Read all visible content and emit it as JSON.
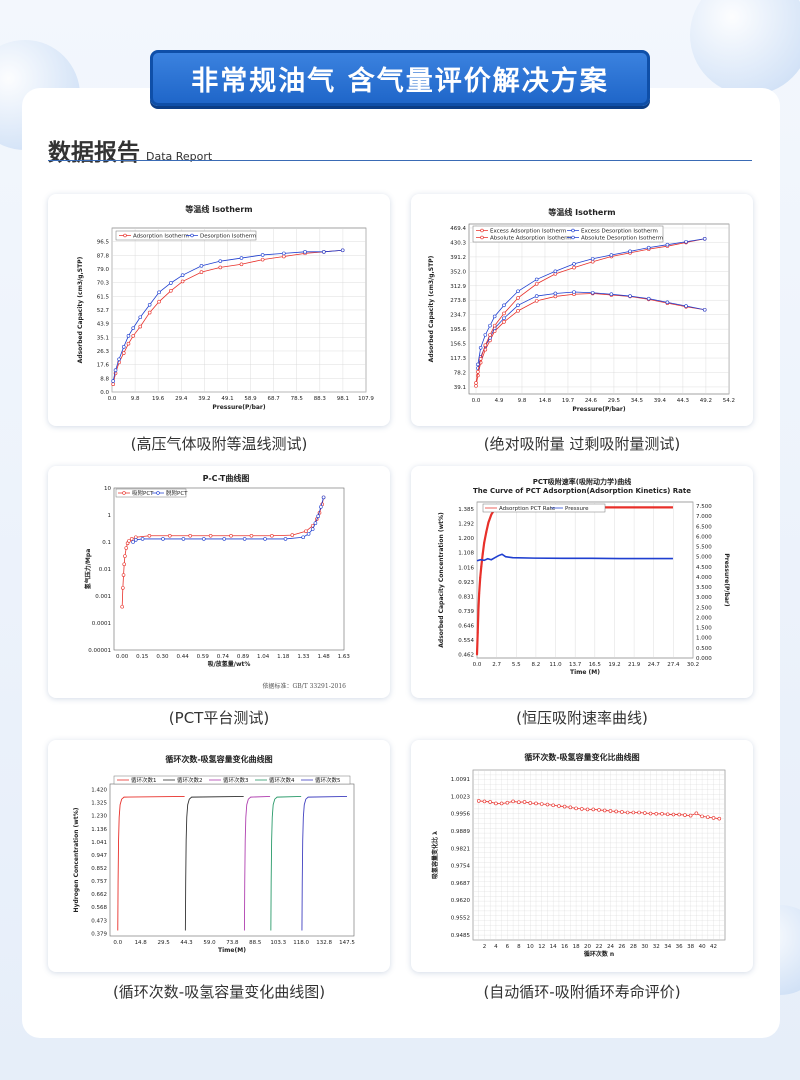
{
  "banner": "非常规油气  含气量评价解决方案",
  "section": {
    "title_cn": "数据报告",
    "title_en": "Data Report"
  },
  "captions": [
    "(高压气体吸附等温线测试)",
    "(绝对吸附量 过剩吸附量测试)",
    "(PCT平台测试)",
    "(恒压吸附速率曲线)",
    "(循环次数-吸氢容量变化曲线图)",
    "(自动循环-吸附循环寿命评价)"
  ],
  "colors": {
    "red": "#e8302a",
    "blue": "#1f3fd0",
    "grid": "#d6d6d6"
  },
  "chart_data": [
    {
      "type": "line",
      "title": "等温线 Isotherm",
      "xlabel": "Pressure(P/bar)",
      "ylabel": "Adsorbed Capacity (cm3/g,STP)",
      "xticks": [
        "0.0",
        "9.8",
        "19.6",
        "29.4",
        "39.2",
        "49.1",
        "58.9",
        "68.7",
        "78.5",
        "88.3",
        "98.1",
        "107.9"
      ],
      "yticks": [
        "0.0",
        "8.8",
        "17.6",
        "26.3",
        "35.1",
        "43.9",
        "52.7",
        "61.5",
        "70.3",
        "79.0",
        "87.8",
        "96.5"
      ],
      "xlim": [
        0,
        107.9
      ],
      "ylim": [
        0,
        105.3
      ],
      "legend": [
        "Adsorption Isotherm",
        "Desorption Isotherm"
      ],
      "series": [
        {
          "name": "Adsorption Isotherm",
          "color": "#e8302a",
          "x": [
            0.5,
            1.5,
            3,
            5,
            7,
            9,
            12,
            16,
            20,
            25,
            30,
            38,
            46,
            55,
            64,
            73,
            82,
            90,
            98
          ],
          "y": [
            5,
            12,
            19,
            25,
            31,
            36,
            42,
            51,
            58,
            65,
            71,
            77,
            80,
            82,
            85,
            87,
            89,
            90,
            91
          ]
        },
        {
          "name": "Desorption Isotherm",
          "color": "#1f3fd0",
          "x": [
            98,
            90,
            82,
            73,
            64,
            55,
            46,
            38,
            30,
            25,
            20,
            16,
            12,
            9,
            7,
            5,
            3,
            1.5,
            0.5
          ],
          "y": [
            91,
            90,
            90,
            89,
            88,
            86,
            84,
            81,
            75,
            70,
            64,
            56,
            48,
            41,
            36,
            29,
            21,
            14,
            7
          ]
        }
      ]
    },
    {
      "type": "line",
      "title": "等温线 Isotherm",
      "xlabel": "Pressure(P/bar)",
      "ylabel": "Adsorbed Capacity (cm3/g,STP)",
      "xticks": [
        "0.0",
        "4.9",
        "9.8",
        "14.8",
        "19.7",
        "24.6",
        "29.5",
        "34.5",
        "39.4",
        "44.3",
        "49.2",
        "54.2"
      ],
      "yticks": [
        "39.1",
        "78.2",
        "117.3",
        "156.5",
        "195.6",
        "234.7",
        "273.8",
        "312.9",
        "352.0",
        "391.2",
        "430.3",
        "469.4"
      ],
      "xlim": [
        -1.5,
        54.2
      ],
      "ylim": [
        39.1,
        469.4
      ],
      "legend": [
        "Excess Adsorption Isotherm",
        "Excess Desorption Isotherm",
        "Absolute Adsorption Isotherm",
        "Absolute Desorption Isotherm"
      ],
      "series": [
        {
          "name": "Excess Adsorption Isotherm",
          "color": "#e8302a",
          "x": [
            0,
            0.4,
            1,
            2,
            3,
            4,
            6,
            9,
            13,
            17,
            21,
            25,
            29,
            33,
            37,
            41,
            45,
            49
          ],
          "y": [
            42,
            70,
            105,
            140,
            165,
            190,
            215,
            245,
            272,
            284,
            290,
            292,
            288,
            284,
            276,
            266,
            256,
            248
          ]
        },
        {
          "name": "Excess Desorption Isotherm",
          "color": "#1f3fd0",
          "x": [
            49,
            45,
            41,
            37,
            33,
            29,
            25,
            21,
            17,
            13,
            9,
            6,
            4,
            3,
            2,
            1,
            0.4
          ],
          "y": [
            248,
            258,
            268,
            278,
            285,
            290,
            294,
            296,
            292,
            285,
            260,
            225,
            198,
            172,
            150,
            120,
            90
          ]
        },
        {
          "name": "Absolute Adsorption Isotherm",
          "color": "#e8302a",
          "x": [
            0,
            0.4,
            1,
            2,
            3,
            4,
            6,
            9,
            13,
            17,
            21,
            25,
            29,
            33,
            37,
            41,
            45,
            49
          ],
          "y": [
            50,
            80,
            115,
            152,
            180,
            205,
            238,
            280,
            318,
            345,
            362,
            378,
            392,
            402,
            412,
            420,
            430,
            440
          ]
        },
        {
          "name": "Absolute Desorption Isotherm",
          "color": "#1f3fd0",
          "x": [
            49,
            45,
            41,
            37,
            33,
            29,
            25,
            21,
            17,
            13,
            9,
            6,
            4,
            3,
            2,
            1,
            0.4
          ],
          "y": [
            440,
            432,
            424,
            416,
            406,
            396,
            386,
            372,
            352,
            330,
            298,
            260,
            230,
            205,
            180,
            145,
            100
          ]
        }
      ]
    },
    {
      "type": "line",
      "title": "P-C-T曲线图",
      "xlabel": "吸/放氢量/wt%",
      "ylabel": "氢气压力/Mpa",
      "xticks": [
        "0.00",
        "0.15",
        "0.30",
        "0.44",
        "0.59",
        "0.74",
        "0.89",
        "1.04",
        "1.18",
        "1.33",
        "1.48",
        "1.63"
      ],
      "yticks": [
        "10",
        "1",
        "0.1",
        "0.01",
        "0.001",
        "0.0001",
        "0.00001"
      ],
      "log_y": true,
      "xlim": [
        -0.06,
        1.63
      ],
      "legend": [
        "吸附PCT",
        "脱附PCT"
      ],
      "note": "依据标准：GB/T 33291-2016",
      "series": [
        {
          "name": "吸附PCT",
          "color": "#e8302a",
          "x": [
            0.0,
            0.005,
            0.01,
            0.015,
            0.02,
            0.03,
            0.04,
            0.05,
            0.07,
            0.1,
            0.2,
            0.35,
            0.5,
            0.65,
            0.8,
            0.95,
            1.1,
            1.25,
            1.35,
            1.4,
            1.43,
            1.45,
            1.47,
            1.48
          ],
          "y": [
            0.0004,
            0.002,
            0.006,
            0.015,
            0.03,
            0.06,
            0.09,
            0.11,
            0.13,
            0.15,
            0.17,
            0.17,
            0.17,
            0.17,
            0.17,
            0.17,
            0.17,
            0.18,
            0.25,
            0.4,
            0.7,
            1.2,
            2.5,
            4.5
          ]
        },
        {
          "name": "脱附PCT",
          "color": "#1f3fd0",
          "x": [
            1.48,
            1.46,
            1.44,
            1.42,
            1.4,
            1.37,
            1.33,
            1.2,
            1.05,
            0.9,
            0.75,
            0.6,
            0.45,
            0.3,
            0.15,
            0.1,
            0.08
          ],
          "y": [
            4.5,
            2.0,
            0.9,
            0.5,
            0.3,
            0.2,
            0.15,
            0.13,
            0.13,
            0.13,
            0.13,
            0.13,
            0.13,
            0.13,
            0.13,
            0.12,
            0.1
          ]
        }
      ]
    },
    {
      "type": "line",
      "title": "PCT吸附速率(吸附动力学)曲线",
      "subtitle": "The Curve of PCT Adsorption(Adsorption Kinetics) Rate",
      "xlabel": "Time (M)",
      "ylabel": "Adsorbed Capacity Concentration (wt%)",
      "ylabel_right": "Pressure(P/bar)",
      "xticks": [
        "0.0",
        "2.7",
        "5.5",
        "8.2",
        "11.0",
        "13.7",
        "16.5",
        "19.2",
        "21.9",
        "24.7",
        "27.4",
        "30.2"
      ],
      "yticks": [
        "0.462",
        "0.554",
        "0.646",
        "0.739",
        "0.831",
        "0.923",
        "1.016",
        "1.108",
        "1.200",
        "1.292",
        "1.385"
      ],
      "yticks_right": [
        "0.000",
        "0.500",
        "1.000",
        "1.500",
        "2.000",
        "2.500",
        "3.000",
        "3.500",
        "4.000",
        "4.500",
        "5.000",
        "5.500",
        "6.000",
        "6.500",
        "7.000",
        "7.500"
      ],
      "legend": [
        "Adsorption PCT Rate",
        "Pressure"
      ],
      "series": [
        {
          "name": "Adsorption PCT Rate",
          "color": "#e8302a",
          "x": [
            0,
            0.1,
            0.2,
            0.3,
            0.45,
            0.6,
            0.8,
            1.0,
            1.3,
            1.6,
            2.0,
            2.4,
            2.8,
            3.2,
            4,
            6,
            10,
            15,
            20,
            25,
            27.4
          ],
          "y": [
            0.462,
            0.6,
            0.75,
            0.85,
            0.95,
            1.02,
            1.1,
            1.17,
            1.24,
            1.3,
            1.35,
            1.38,
            1.392,
            1.395,
            1.396,
            1.396,
            1.396,
            1.396,
            1.396,
            1.396,
            1.396
          ]
        },
        {
          "name": "Pressure",
          "color": "#1f3fd0",
          "x": [
            0,
            0.5,
            1.0,
            1.5,
            2.0,
            2.5,
            3.0,
            3.5,
            4.0,
            5,
            8,
            12,
            16,
            20,
            24,
            27.4
          ],
          "y": [
            4.8,
            4.85,
            4.82,
            4.9,
            4.85,
            4.95,
            5.05,
            5.12,
            5.0,
            4.95,
            4.93,
            4.92,
            4.92,
            4.91,
            4.91,
            4.91
          ]
        }
      ]
    },
    {
      "type": "line",
      "title": "循环次数-吸氢容量变化曲线图",
      "xlabel": "Time(M)",
      "ylabel": "Hydrogen Concentration (wt%)",
      "xticks": [
        "0.0",
        "14.8",
        "29.5",
        "44.3",
        "59.0",
        "73.8",
        "88.5",
        "103.3",
        "118.0",
        "132.8",
        "147.5"
      ],
      "yticks": [
        "0.379",
        "0.473",
        "0.568",
        "0.662",
        "0.757",
        "0.852",
        "0.947",
        "1.041",
        "1.136",
        "1.230",
        "1.325",
        "1.420"
      ],
      "legend": [
        "循环次数1",
        "循环次数2",
        "循环次数3",
        "循环次数4",
        "循环次数5"
      ],
      "series": [
        {
          "name": "循环次数1",
          "color": "#e8302a",
          "start": 0,
          "end": 43
        },
        {
          "name": "循环次数2",
          "color": "#333333",
          "start": 43.5,
          "end": 81
        },
        {
          "name": "循环次数3",
          "color": "#b040b0",
          "start": 81.5,
          "end": 98
        },
        {
          "name": "循环次数4",
          "color": "#2a9a6a",
          "start": 98.5,
          "end": 118
        },
        {
          "name": "循环次数5",
          "color": "#4040c0",
          "start": 118.5,
          "end": 147.5
        }
      ]
    },
    {
      "type": "line",
      "title": "循环次数-吸氢容量变化比曲线图",
      "xlabel": "循环次数 n",
      "ylabel": "吸氢容量变化比 λ",
      "xticks": [
        "2",
        "4",
        "6",
        "8",
        "10",
        "12",
        "14",
        "16",
        "18",
        "20",
        "22",
        "24",
        "26",
        "28",
        "30",
        "32",
        "34",
        "36",
        "38",
        "40",
        "42"
      ],
      "yticks": [
        "1.0091",
        "1.0023",
        "0.9956",
        "0.9889",
        "0.9821",
        "0.9754",
        "0.9687",
        "0.9620",
        "0.9552",
        "0.9485"
      ],
      "xlim": [
        0,
        44
      ],
      "ylim": [
        0.9465,
        1.0125
      ],
      "series": [
        {
          "name": "",
          "color": "#e8302a",
          "x": [
            1,
            2,
            3,
            4,
            5,
            6,
            7,
            8,
            9,
            10,
            11,
            12,
            13,
            14,
            15,
            16,
            17,
            18,
            19,
            20,
            21,
            22,
            23,
            24,
            25,
            26,
            27,
            28,
            29,
            30,
            31,
            32,
            33,
            34,
            35,
            36,
            37,
            38,
            39,
            40,
            41,
            42,
            43
          ],
          "y": [
            1.0005,
            1.0003,
            1.0001,
            0.9995,
            0.9995,
            0.9998,
            1.0003,
            1.0,
            1.0001,
            0.9997,
            0.9995,
            0.9993,
            0.9991,
            0.9988,
            0.9985,
            0.9983,
            0.998,
            0.9976,
            0.9974,
            0.9972,
            0.9972,
            0.997,
            0.9968,
            0.9966,
            0.9964,
            0.9962,
            0.996,
            0.996,
            0.996,
            0.9958,
            0.9956,
            0.9955,
            0.9955,
            0.9953,
            0.9952,
            0.9952,
            0.995,
            0.9948,
            0.9957,
            0.9945,
            0.9942,
            0.9939,
            0.9936
          ]
        }
      ]
    }
  ]
}
